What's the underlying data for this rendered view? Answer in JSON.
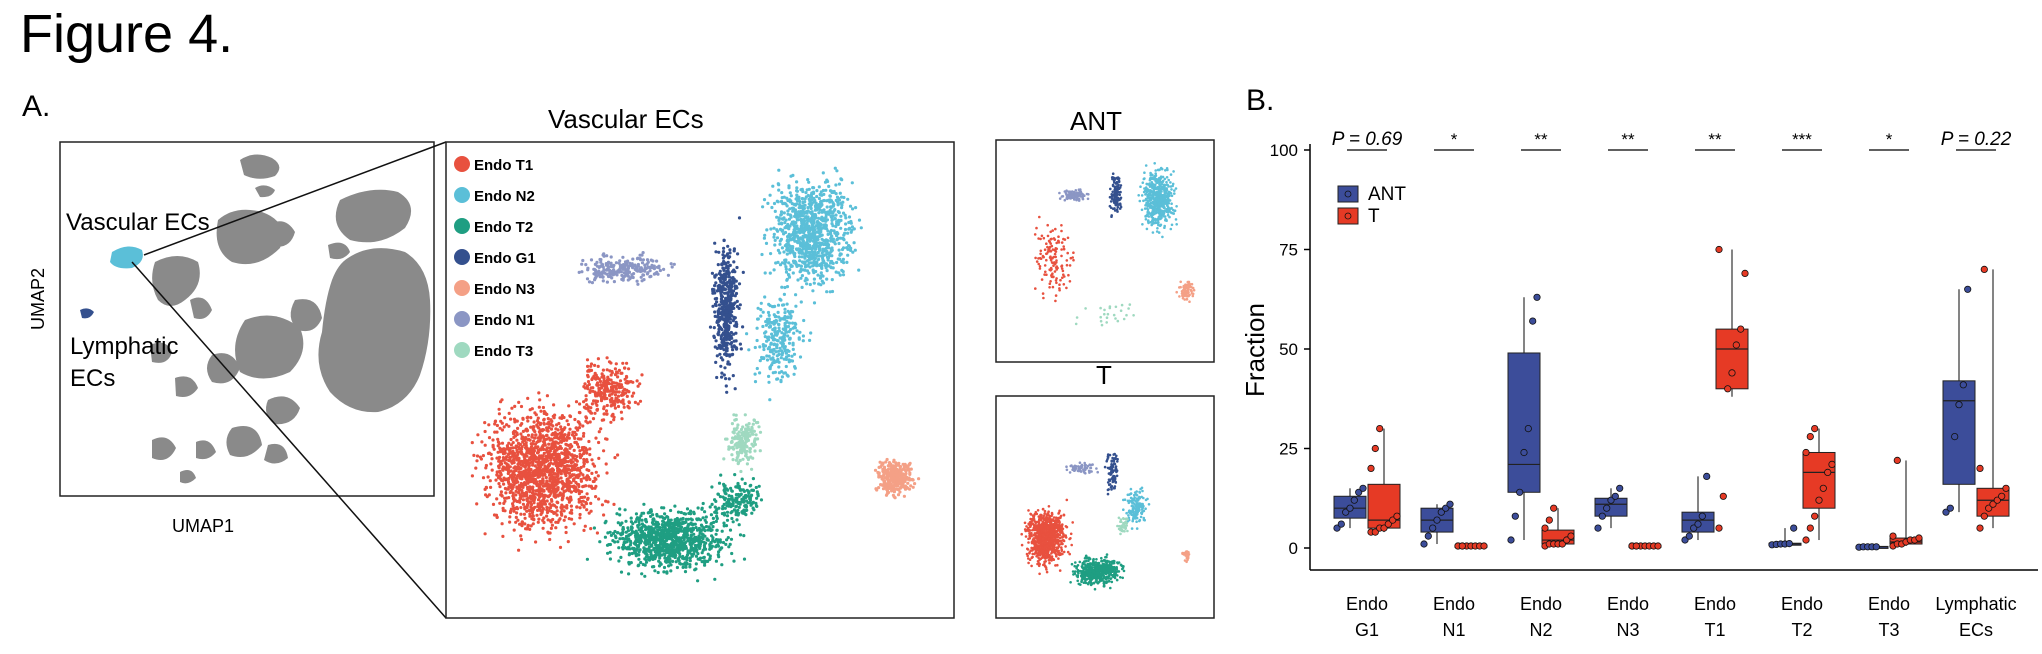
{
  "figure_title": "Figure 4.",
  "panel_a": {
    "letter": "A.",
    "overview": {
      "xlabel": "UMAP1",
      "ylabel": "UMAP2",
      "annotations": [
        "Vascular ECs",
        "Lymphatic",
        "ECs"
      ]
    },
    "vascular_title": "Vascular ECs",
    "legend": [
      {
        "label": "Endo T1",
        "color": "#e8513f"
      },
      {
        "label": "Endo N2",
        "color": "#5bbfd8"
      },
      {
        "label": "Endo T2",
        "color": "#1f9e82"
      },
      {
        "label": "Endo G1",
        "color": "#34508e"
      },
      {
        "label": "Endo N3",
        "color": "#f4a086"
      },
      {
        "label": "Endo N1",
        "color": "#8b96c4"
      },
      {
        "label": "Endo T3",
        "color": "#9fd9c0"
      }
    ],
    "ant_title": "ANT",
    "t_title": "T"
  },
  "panel_b": {
    "letter": "B."
  },
  "chart_data": {
    "type": "box",
    "ylabel": "Fraction",
    "ylim": [
      0,
      100
    ],
    "yticks": [
      0,
      25,
      50,
      75,
      100
    ],
    "legend": [
      {
        "name": "ANT",
        "color": "#3c4d9a"
      },
      {
        "name": "T",
        "color": "#e63a25"
      }
    ],
    "categories": [
      {
        "label": [
          "Endo",
          "G1"
        ],
        "annotation": "P = 0.69",
        "italic": true,
        "ANT": {
          "q1": 7.5,
          "median": 10,
          "q3": 13,
          "wlo": 5,
          "whi": 15,
          "points": [
            5,
            6,
            9,
            10,
            12,
            14,
            15
          ]
        },
        "T": {
          "q1": 5,
          "median": 7,
          "q3": 16,
          "wlo": 4,
          "whi": 30,
          "points": [
            4,
            4,
            5,
            5,
            6,
            7,
            8,
            20,
            25,
            30
          ]
        }
      },
      {
        "label": [
          "Endo",
          "N1"
        ],
        "annotation": "*",
        "italic": false,
        "ANT": {
          "q1": 4,
          "median": 7,
          "q3": 10,
          "wlo": 1,
          "whi": 11,
          "points": [
            1,
            3,
            5,
            7,
            9,
            10,
            11
          ]
        },
        "T": {
          "q1": 0.3,
          "median": 0.5,
          "q3": 0.7,
          "wlo": 0.3,
          "whi": 0.7,
          "points": [
            0.5,
            0.5,
            0.5,
            0.5,
            0.5,
            0.5,
            0.5,
            0.5,
            0.5
          ]
        }
      },
      {
        "label": [
          "Endo",
          "N2"
        ],
        "annotation": "**",
        "italic": false,
        "ANT": {
          "q1": 14,
          "median": 21,
          "q3": 49,
          "wlo": 2,
          "whi": 63,
          "points": [
            2,
            8,
            14,
            24,
            30,
            57,
            63
          ]
        },
        "T": {
          "q1": 1,
          "median": 2,
          "q3": 4.5,
          "wlo": 0.5,
          "whi": 10,
          "points": [
            0.5,
            1,
            1,
            1,
            1,
            2,
            3,
            5,
            7,
            10
          ]
        }
      },
      {
        "label": [
          "Endo",
          "N3"
        ],
        "annotation": "**",
        "italic": false,
        "ANT": {
          "q1": 8,
          "median": 11,
          "q3": 12.5,
          "wlo": 5,
          "whi": 15,
          "points": [
            5,
            8,
            10,
            12,
            13,
            15
          ]
        },
        "T": {
          "q1": 0.3,
          "median": 0.5,
          "q3": 0.7,
          "wlo": 0.3,
          "whi": 0.7,
          "points": [
            0.5,
            0.5,
            0.5,
            0.5,
            0.5,
            0.5,
            0.5,
            0.5,
            0.5
          ]
        }
      },
      {
        "label": [
          "Endo",
          "T1"
        ],
        "annotation": "**",
        "italic": false,
        "ANT": {
          "q1": 4,
          "median": 7,
          "q3": 9,
          "wlo": 2,
          "whi": 18,
          "points": [
            2,
            3,
            5,
            6,
            8,
            18
          ]
        },
        "T": {
          "q1": 40,
          "median": 50,
          "q3": 55,
          "wlo": 38,
          "whi": 75,
          "points": [
            5,
            13,
            40,
            44,
            51,
            55,
            69,
            75
          ]
        }
      },
      {
        "label": [
          "Endo",
          "T2"
        ],
        "annotation": "***",
        "italic": false,
        "ANT": {
          "q1": 0.8,
          "median": 1,
          "q3": 1.2,
          "wlo": 0.8,
          "whi": 5,
          "points": [
            0.8,
            0.9,
            1,
            1,
            1.1,
            5
          ]
        },
        "T": {
          "q1": 10,
          "median": 19,
          "q3": 24,
          "wlo": 2,
          "whi": 30,
          "points": [
            2,
            5,
            8,
            12,
            15,
            19,
            21,
            24,
            28,
            30
          ]
        }
      },
      {
        "label": [
          "Endo",
          "T3"
        ],
        "annotation": "*",
        "italic": false,
        "ANT": {
          "q1": 0.2,
          "median": 0.3,
          "q3": 0.4,
          "wlo": 0.2,
          "whi": 0.4,
          "points": [
            0.2,
            0.3,
            0.3,
            0.3,
            0.3
          ]
        },
        "T": {
          "q1": 1,
          "median": 1.5,
          "q3": 2.5,
          "wlo": 0.5,
          "whi": 22,
          "points": [
            0.5,
            1,
            1,
            1.5,
            2,
            2,
            2.5,
            3,
            22
          ]
        }
      },
      {
        "label": [
          "Lymphatic",
          "ECs"
        ],
        "annotation": "P = 0.22",
        "italic": true,
        "ANT": {
          "q1": 16,
          "median": 37,
          "q3": 42,
          "wlo": 9,
          "whi": 65,
          "points": [
            9,
            10,
            28,
            36,
            41,
            65
          ]
        },
        "T": {
          "q1": 8,
          "median": 12,
          "q3": 15,
          "wlo": 5,
          "whi": 70,
          "points": [
            5,
            8,
            10,
            11,
            12,
            13,
            15,
            20,
            70
          ]
        }
      }
    ]
  }
}
